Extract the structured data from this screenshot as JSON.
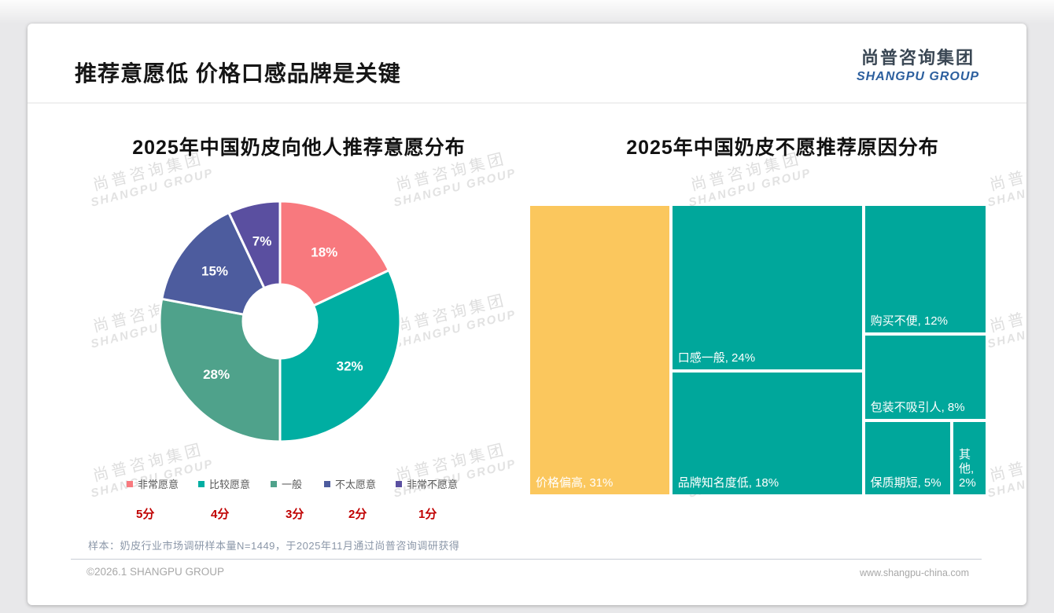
{
  "page": {
    "title": "推荐意愿低 价格口感品牌是关键",
    "logo": {
      "cn": "尚普咨询集团",
      "en": "SHANGPU GROUP"
    },
    "watermark": {
      "line1": "尚普咨询集团",
      "line2": "SHANGPU GROUP"
    },
    "sample_note": "样本：奶皮行业市场调研样本量N=1449，于2025年11月通过尚普咨询调研获得",
    "footer": {
      "copyright": "©2026.1 SHANGPU GROUP",
      "website": "www.shangpu-china.com"
    }
  },
  "colors": {
    "accent_red": "#c00000",
    "logo_blue": "#2c5f9e",
    "treemap_yellow": "#fbc75d",
    "treemap_teal": "#00a79b"
  },
  "chart_data": [
    {
      "type": "pie",
      "subtype": "donut",
      "title": "2025年中国奶皮向他人推荐意愿分布",
      "legend_position": "bottom",
      "series": [
        {
          "label": "非常愿意",
          "score": "5分",
          "value": 18,
          "color": "#f8797e"
        },
        {
          "label": "比较愿意",
          "score": "4分",
          "value": 32,
          "color": "#00aea2"
        },
        {
          "label": "一般",
          "score": "3分",
          "value": 28,
          "color": "#4fa28b"
        },
        {
          "label": "不太愿意",
          "score": "2分",
          "value": 15,
          "color": "#4d5c9e"
        },
        {
          "label": "非常不愿意",
          "score": "1分",
          "value": 7,
          "color": "#5a4fa0"
        }
      ]
    },
    {
      "type": "heatmap",
      "subtype": "treemap",
      "title": "2025年中国奶皮不愿推荐原因分布",
      "items": [
        {
          "label": "价格偏高",
          "value": 31,
          "color": "#fbc75d"
        },
        {
          "label": "口感一般",
          "value": 24,
          "color": "#00a79b"
        },
        {
          "label": "品牌知名度低",
          "value": 18,
          "color": "#00a79b"
        },
        {
          "label": "购买不便",
          "value": 12,
          "color": "#00a79b"
        },
        {
          "label": "包装不吸引人",
          "value": 8,
          "color": "#00a79b"
        },
        {
          "label": "保质期短",
          "value": 5,
          "color": "#00a79b"
        },
        {
          "label": "其他",
          "value": 2,
          "color": "#00a79b"
        }
      ]
    }
  ]
}
